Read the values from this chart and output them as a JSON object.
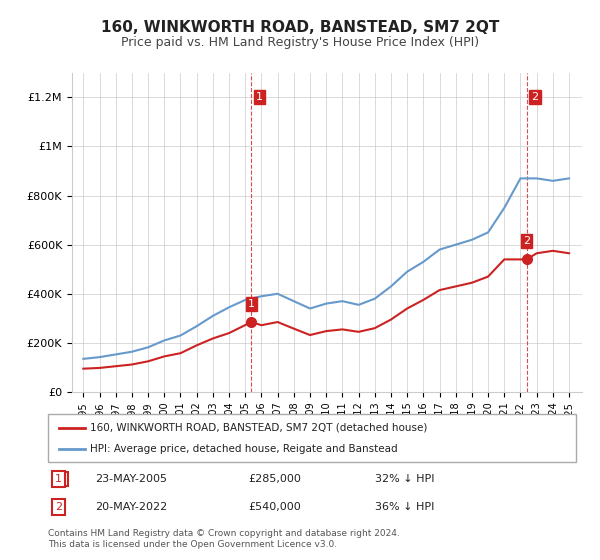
{
  "title": "160, WINKWORTH ROAD, BANSTEAD, SM7 2QT",
  "subtitle": "Price paid vs. HM Land Registry's House Price Index (HPI)",
  "footer": "Contains HM Land Registry data © Crown copyright and database right 2024.\nThis data is licensed under the Open Government Licence v3.0.",
  "legend_entry1": "160, WINKWORTH ROAD, BANSTEAD, SM7 2QT (detached house)",
  "legend_entry2": "HPI: Average price, detached house, Reigate and Banstead",
  "sale1_label": "1",
  "sale1_date": "23-MAY-2005",
  "sale1_price": "£285,000",
  "sale1_hpi": "32% ↓ HPI",
  "sale1_year": 2005.38,
  "sale1_value": 285000,
  "sale2_label": "2",
  "sale2_date": "20-MAY-2022",
  "sale2_price": "£540,000",
  "sale2_hpi": "36% ↓ HPI",
  "sale2_year": 2022.38,
  "sale2_value": 540000,
  "hpi_color": "#6699cc",
  "sale_color": "#cc2222",
  "vline_color": "#cc2222",
  "grid_color": "#cccccc",
  "background_color": "#ffffff",
  "ylim": [
    0,
    1300000
  ],
  "yticks": [
    0,
    200000,
    400000,
    600000,
    800000,
    1000000,
    1200000
  ],
  "ytick_labels": [
    "£0",
    "£200K",
    "£400K",
    "£600K",
    "£800K",
    "£1M",
    "£1.2M"
  ],
  "hpi_years": [
    1995,
    1996,
    1997,
    1998,
    1999,
    2000,
    2001,
    2002,
    2003,
    2004,
    2005,
    2006,
    2007,
    2008,
    2009,
    2010,
    2011,
    2012,
    2013,
    2014,
    2015,
    2016,
    2017,
    2018,
    2019,
    2020,
    2021,
    2022,
    2023,
    2024,
    2025
  ],
  "hpi_values": [
    135000,
    142000,
    153000,
    164000,
    182000,
    210000,
    230000,
    268000,
    310000,
    345000,
    375000,
    390000,
    400000,
    370000,
    340000,
    360000,
    370000,
    355000,
    380000,
    430000,
    490000,
    530000,
    580000,
    600000,
    620000,
    650000,
    750000,
    870000,
    870000,
    860000,
    870000
  ],
  "sale_years": [
    1995,
    1996,
    1997,
    1998,
    1999,
    2000,
    2001,
    2002,
    2003,
    2004,
    2005.38,
    2006,
    2007,
    2008,
    2009,
    2010,
    2011,
    2012,
    2013,
    2014,
    2015,
    2016,
    2017,
    2018,
    2019,
    2020,
    2021,
    2022.38,
    2023,
    2024,
    2025
  ],
  "sale_values": [
    95000,
    98000,
    105000,
    112000,
    125000,
    145000,
    158000,
    190000,
    218000,
    240000,
    285000,
    272000,
    285000,
    258000,
    232000,
    248000,
    255000,
    245000,
    260000,
    295000,
    340000,
    375000,
    415000,
    430000,
    445000,
    470000,
    540000,
    540000,
    565000,
    575000,
    565000
  ]
}
